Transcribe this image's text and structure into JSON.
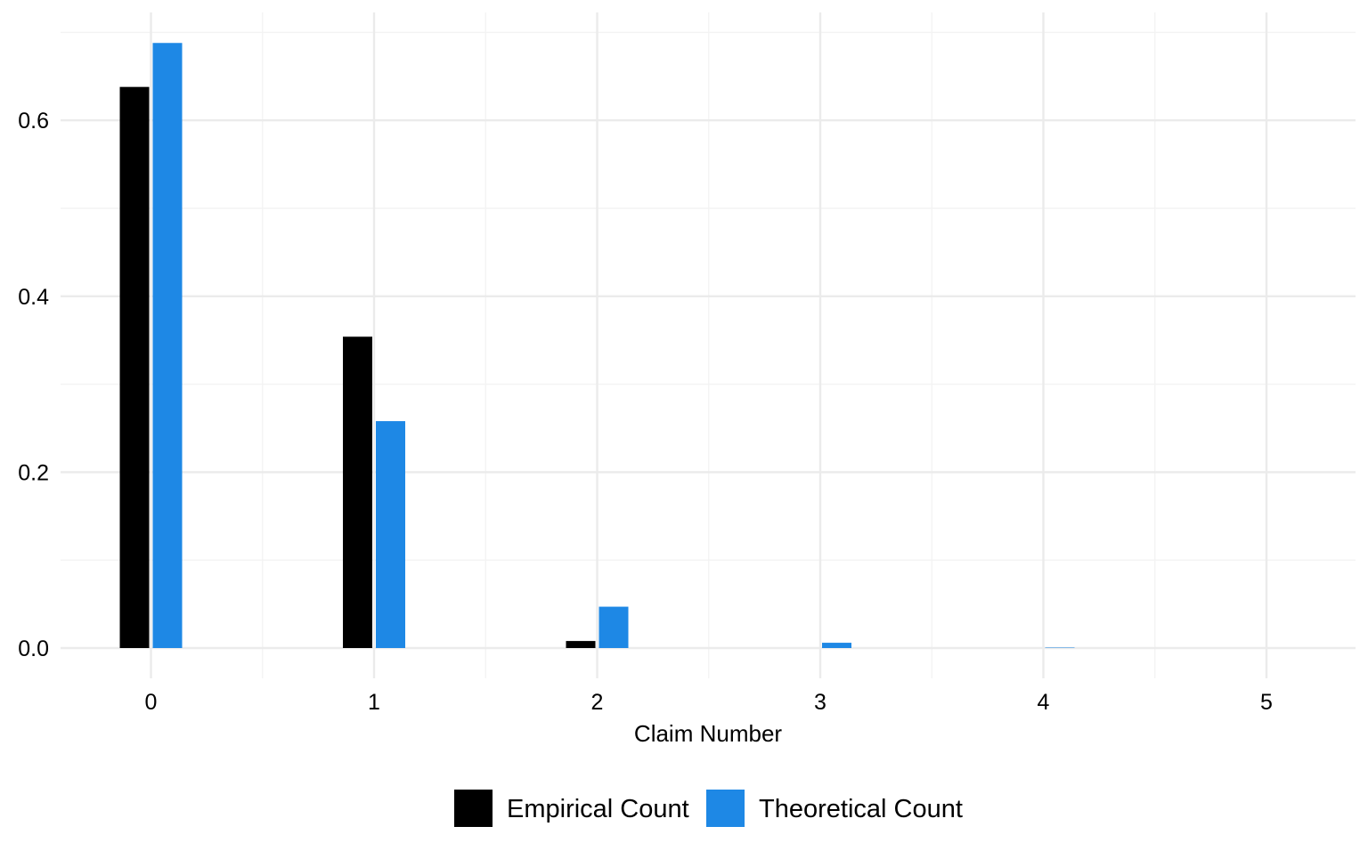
{
  "chart_data": {
    "type": "bar",
    "title": "",
    "xlabel": "Claim Number",
    "ylabel": "",
    "categories": [
      "0",
      "1",
      "2",
      "3",
      "4",
      "5"
    ],
    "x": [
      0,
      1,
      2,
      3,
      4,
      5
    ],
    "xlim": [
      -0.4,
      5.4
    ],
    "ylim": [
      0,
      0.7
    ],
    "yticks": [
      "0.0",
      "0.2",
      "0.4",
      "0.6"
    ],
    "ytick_values": [
      0.0,
      0.2,
      0.4,
      0.6
    ],
    "grid": true,
    "legend_position": "bottom",
    "series": [
      {
        "name": "Empirical Count",
        "color": "#000000",
        "values": [
          0.638,
          0.354,
          0.008,
          0.0,
          0.0,
          0.0
        ]
      },
      {
        "name": "Theoretical Count",
        "color": "#1E88E5",
        "values": [
          0.688,
          0.258,
          0.047,
          0.006,
          0.0005,
          0.0
        ]
      }
    ],
    "colors": {
      "grid_major": "#EBEBEB",
      "grid_minor": "#F3F3F3"
    }
  }
}
